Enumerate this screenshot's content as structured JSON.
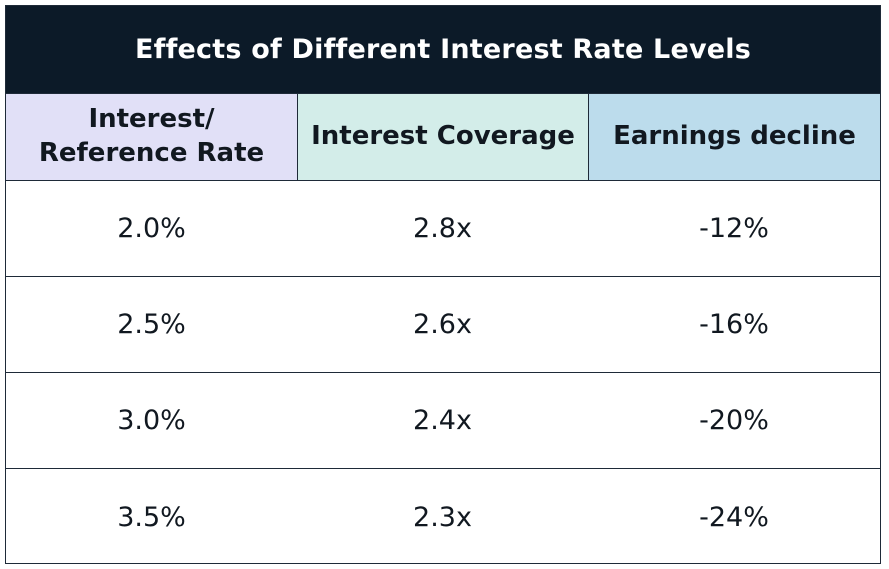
{
  "colors": {
    "title_bg": "#0c1a28",
    "header_col1_bg": "#e1e0f7",
    "header_col2_bg": "#d3ede9",
    "header_col3_bg": "#bcdcec"
  },
  "chart_data": {
    "type": "table",
    "title": "Effects of Different Interest Rate Levels",
    "columns": [
      "Interest/\nReference Rate",
      "Interest Coverage",
      "Earnings decline"
    ],
    "rows": [
      [
        "2.0%",
        "2.8x",
        "-12%"
      ],
      [
        "2.5%",
        "2.6x",
        "-16%"
      ],
      [
        "3.0%",
        "2.4x",
        "-20%"
      ],
      [
        "3.5%",
        "2.3x",
        "-24%"
      ]
    ]
  }
}
